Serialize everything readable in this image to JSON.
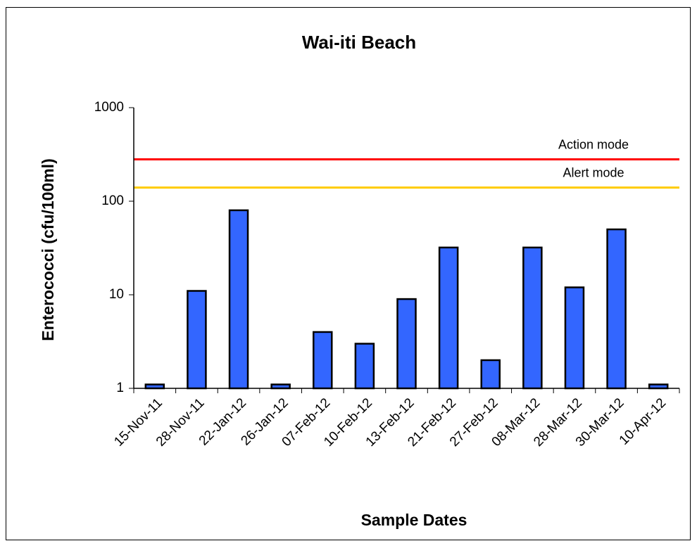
{
  "chart_data": {
    "type": "bar",
    "title": "Wai-iti  Beach",
    "x_label": "Sample Dates",
    "y_label": "Enterococci (cfu/100ml)",
    "categories": [
      "15-Nov-11",
      "28-Nov-11",
      "22-Jan-12",
      "26-Jan-12",
      "07-Feb-12",
      "10-Feb-12",
      "13-Feb-12",
      "21-Feb-12",
      "27-Feb-12",
      "08-Mar-12",
      "28-Mar-12",
      "30-Mar-12",
      "10-Apr-12"
    ],
    "values": [
      1.1,
      11,
      80,
      1.1,
      4,
      3,
      9,
      32,
      2,
      32,
      12,
      50,
      1.1
    ],
    "color": "#3366ff",
    "log_scale": true,
    "ylim": [
      1,
      1000
    ],
    "yticks": [
      1,
      10,
      100,
      1000
    ],
    "reference_lines": [
      {
        "label": "Action mode",
        "value": 280,
        "color": "#ff0000"
      },
      {
        "label": "Alert mode",
        "value": 140,
        "color": "#ffcc00"
      }
    ]
  }
}
